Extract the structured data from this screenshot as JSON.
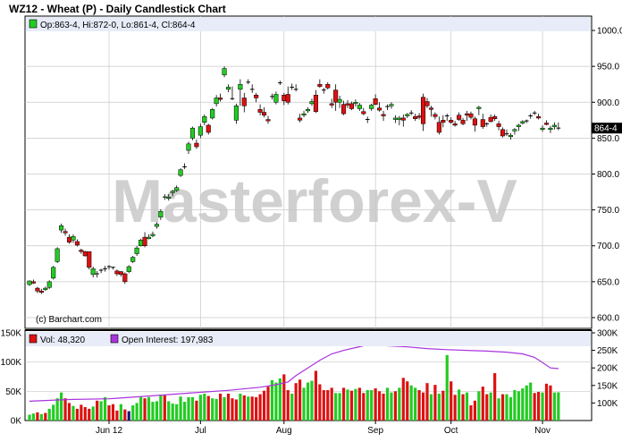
{
  "title": "WZ12 - Wheat (P) - Daily Candlestick Chart",
  "watermark": "Masterforex-V",
  "credit": "(c) Barchart.com",
  "colors": {
    "up": "#22cc22",
    "down": "#dd1111",
    "oi_line": "#aa33dd",
    "vol_neutral": "#1a1a80",
    "grid": "#c8c8c8",
    "legend_bg": "#e8ecf8"
  },
  "chart_data": [
    {
      "type": "candlestick",
      "legend": {
        "open": "Op:863-4",
        "high": "Hi:872-0",
        "low": "Lo:861-4",
        "close": "Cl:864-4"
      },
      "last_price_label": "864-4",
      "ylim": [
        585,
        1020
      ],
      "yticks": [
        600,
        650,
        700,
        750,
        800,
        850,
        900,
        950,
        1000
      ],
      "ytick_labels": [
        "600.0",
        "650.0",
        "700.0",
        "750.0",
        "800.0",
        "850.0",
        "900.0",
        "950.0",
        "1000.0"
      ],
      "x_labels": [
        {
          "index": 20,
          "label": "Jun 12"
        },
        {
          "index": 43,
          "label": "Jul"
        },
        {
          "index": 64,
          "label": "Aug"
        },
        {
          "index": 87,
          "label": "Sep"
        },
        {
          "index": 106,
          "label": "Oct"
        },
        {
          "index": 129,
          "label": "Nov"
        }
      ],
      "candles": [
        [
          646,
          652,
          644,
          651
        ],
        [
          650,
          653,
          647,
          648
        ],
        [
          641,
          643,
          634,
          637
        ],
        [
          637,
          640,
          633,
          635
        ],
        [
          639,
          643,
          637,
          641
        ],
        [
          642,
          652,
          640,
          650
        ],
        [
          655,
          672,
          653,
          670
        ],
        [
          678,
          698,
          676,
          696
        ],
        [
          722,
          731,
          718,
          728
        ],
        [
          720,
          724,
          714,
          718
        ],
        [
          712,
          716,
          703,
          705
        ],
        [
          708,
          716,
          704,
          713
        ],
        [
          706,
          709,
          699,
          701
        ],
        [
          694,
          696,
          689,
          692
        ],
        [
          692,
          693,
          685,
          686
        ],
        [
          692,
          692,
          667,
          670
        ],
        [
          660,
          671,
          656,
          668
        ],
        [
          661,
          665,
          656,
          660
        ],
        [
          665,
          668,
          662,
          666
        ],
        [
          668,
          672,
          664,
          667
        ],
        [
          671,
          673,
          667,
          670
        ],
        [
          670,
          671,
          667,
          669
        ],
        [
          665,
          667,
          658,
          661
        ],
        [
          664,
          665,
          657,
          660
        ],
        [
          661,
          663,
          647,
          650
        ],
        [
          664,
          673,
          662,
          671
        ],
        [
          678,
          686,
          676,
          684
        ],
        [
          689,
          700,
          686,
          697
        ],
        [
          700,
          710,
          699,
          708
        ],
        [
          712,
          719,
          698,
          700
        ],
        [
          710,
          716,
          709,
          712
        ],
        [
          714,
          720,
          712,
          716
        ],
        [
          727,
          733,
          724,
          730
        ],
        [
          740,
          751,
          736,
          748
        ],
        [
          768,
          772,
          764,
          767
        ],
        [
          766,
          772,
          763,
          768
        ],
        [
          774,
          778,
          769,
          776
        ],
        [
          777,
          784,
          775,
          781
        ],
        [
          798,
          808,
          796,
          806
        ],
        [
          810,
          815,
          807,
          810
        ],
        [
          833,
          845,
          828,
          842
        ],
        [
          850,
          866,
          847,
          864
        ],
        [
          843,
          848,
          835,
          838
        ],
        [
          854,
          870,
          850,
          866
        ],
        [
          872,
          883,
          868,
          880
        ],
        [
          868,
          870,
          855,
          858
        ],
        [
          878,
          892,
          876,
          890
        ],
        [
          898,
          910,
          894,
          906
        ],
        [
          906,
          912,
          901,
          904
        ],
        [
          938,
          950,
          935,
          947
        ],
        [
          918,
          925,
          914,
          921
        ],
        [
          905,
          922,
          903,
          905
        ],
        [
          875,
          898,
          870,
          895
        ],
        [
          918,
          932,
          895,
          925
        ],
        [
          906,
          913,
          886,
          895
        ],
        [
          928,
          932,
          925,
          928
        ],
        [
          918,
          925,
          913,
          918
        ],
        [
          910,
          913,
          900,
          906
        ],
        [
          890,
          897,
          882,
          886
        ],
        [
          886,
          893,
          879,
          882
        ],
        [
          876,
          881,
          870,
          874
        ],
        [
          908,
          912,
          904,
          907
        ],
        [
          900,
          915,
          897,
          911
        ],
        [
          927,
          930,
          924,
          927
        ],
        [
          910,
          913,
          896,
          902
        ],
        [
          911,
          922,
          897,
          900
        ],
        [
          921,
          926,
          917,
          920
        ],
        [
          918,
          925,
          915,
          918
        ],
        [
          878,
          884,
          872,
          875
        ],
        [
          882,
          888,
          879,
          884
        ],
        [
          888,
          893,
          885,
          890
        ],
        [
          898,
          905,
          895,
          901
        ],
        [
          910,
          917,
          885,
          887
        ],
        [
          925,
          932,
          920,
          922
        ],
        [
          917,
          920,
          912,
          916
        ],
        [
          925,
          928,
          918,
          920
        ],
        [
          898,
          905,
          892,
          896
        ],
        [
          917,
          925,
          888,
          900
        ],
        [
          900,
          909,
          892,
          904
        ],
        [
          897,
          902,
          882,
          884
        ],
        [
          898,
          903,
          892,
          896
        ],
        [
          898,
          901,
          889,
          891
        ],
        [
          898,
          904,
          894,
          900
        ],
        [
          891,
          899,
          888,
          896
        ],
        [
          887,
          892,
          882,
          884
        ],
        [
          875,
          880,
          871,
          876
        ],
        [
          891,
          898,
          888,
          896
        ],
        [
          905,
          911,
          896,
          897
        ],
        [
          892,
          900,
          887,
          889
        ],
        [
          883,
          888,
          874,
          881
        ],
        [
          893,
          897,
          889,
          894
        ],
        [
          895,
          900,
          891,
          897
        ],
        [
          876,
          882,
          871,
          878
        ],
        [
          876,
          881,
          868,
          878
        ],
        [
          878,
          883,
          866,
          875
        ],
        [
          881,
          885,
          878,
          883
        ],
        [
          885,
          889,
          882,
          885
        ],
        [
          880,
          884,
          874,
          877
        ],
        [
          881,
          885,
          876,
          879
        ],
        [
          907,
          912,
          860,
          870
        ],
        [
          901,
          906,
          892,
          895
        ],
        [
          892,
          895,
          880,
          890
        ],
        [
          883,
          886,
          876,
          880
        ],
        [
          872,
          880,
          855,
          858
        ],
        [
          875,
          882,
          865,
          872
        ],
        [
          880,
          884,
          874,
          881
        ],
        [
          875,
          879,
          870,
          872
        ],
        [
          870,
          874,
          866,
          868
        ],
        [
          882,
          886,
          874,
          876
        ],
        [
          875,
          878,
          868,
          870
        ],
        [
          884,
          888,
          874,
          882
        ],
        [
          884,
          887,
          876,
          879
        ],
        [
          877,
          880,
          859,
          868
        ],
        [
          891,
          895,
          882,
          893
        ],
        [
          876,
          884,
          863,
          866
        ],
        [
          869,
          872,
          866,
          870
        ],
        [
          879,
          883,
          872,
          873
        ],
        [
          880,
          883,
          874,
          877
        ],
        [
          870,
          874,
          861,
          866
        ],
        [
          862,
          865,
          851,
          853
        ],
        [
          856,
          862,
          853,
          855
        ],
        [
          852,
          857,
          848,
          854
        ],
        [
          860,
          864,
          855,
          862
        ],
        [
          866,
          870,
          860,
          868
        ],
        [
          871,
          875,
          869,
          873
        ],
        [
          874,
          876,
          871,
          874
        ],
        [
          880,
          884,
          877,
          881
        ],
        [
          884,
          888,
          882,
          885
        ],
        [
          880,
          884,
          876,
          878
        ],
        [
          862,
          868,
          859,
          864
        ],
        [
          871,
          875,
          868,
          869
        ],
        [
          862,
          867,
          857,
          864
        ],
        [
          866,
          872,
          862,
          868
        ],
        [
          863,
          872,
          861,
          864
        ]
      ]
    },
    {
      "type": "bar+line",
      "legend_vol": "Vol: 48,320",
      "legend_oi": "Open Interest: 197,983",
      "vol_ylim": [
        0,
        150000
      ],
      "vol_yticks": [
        0,
        50000,
        100000,
        150000
      ],
      "vol_ytick_labels": [
        "0K",
        "50K",
        "100K",
        "150K"
      ],
      "oi_ylim": [
        50000,
        300000
      ],
      "oi_yticks": [
        100000,
        150000,
        200000,
        250000,
        300000
      ],
      "oi_ytick_labels": [
        "100K",
        "150K",
        "200K",
        "250K",
        "300K"
      ],
      "volume": [
        10000,
        12000,
        14000,
        11000,
        13000,
        20000,
        27000,
        38000,
        48000,
        38000,
        30000,
        25000,
        20000,
        27000,
        23000,
        20000,
        24000,
        34000,
        33000,
        40000,
        26000,
        28000,
        17000,
        28000,
        19000,
        16000,
        26000,
        30000,
        40000,
        38000,
        40000,
        32000,
        33000,
        44000,
        43000,
        33000,
        29000,
        28000,
        41000,
        32000,
        40000,
        40000,
        34000,
        44000,
        46000,
        42000,
        38000,
        37000,
        46000,
        40000,
        46000,
        38000,
        36000,
        46000,
        43000,
        41000,
        41000,
        40000,
        45000,
        51000,
        58000,
        69000,
        65000,
        72000,
        79000,
        52000,
        46000,
        64000,
        70000,
        56000,
        65000,
        68000,
        85000,
        62000,
        52000,
        52000,
        56000,
        47000,
        47000,
        56000,
        53000,
        51000,
        54000,
        56000,
        47000,
        52000,
        52000,
        55000,
        50000,
        46000,
        56000,
        48000,
        50000,
        56000,
        73000,
        67000,
        60000,
        56000,
        52000,
        48000,
        64000,
        45000,
        61000,
        46000,
        51000,
        112000,
        67000,
        44000,
        53000,
        45000,
        48000,
        26000,
        34000,
        50000,
        58000,
        45000,
        48000,
        81000,
        38000,
        45000,
        45000,
        40000,
        52000,
        50000,
        55000,
        60000,
        65000,
        47000,
        49000,
        48000,
        63000,
        60000,
        48000,
        48320
      ],
      "volume_colors": [
        "g",
        "g",
        "r",
        "g",
        "r",
        "g",
        "g",
        "g",
        "g",
        "r",
        "r",
        "g",
        "r",
        "r",
        "r",
        "r",
        "g",
        "r",
        "g",
        "g",
        "r",
        "r",
        "r",
        "g",
        "r",
        "b",
        "g",
        "g",
        "g",
        "r",
        "g",
        "g",
        "g",
        "g",
        "r",
        "g",
        "g",
        "g",
        "g",
        "g",
        "g",
        "g",
        "r",
        "g",
        "g",
        "r",
        "g",
        "g",
        "r",
        "g",
        "r",
        "r",
        "r",
        "g",
        "r",
        "g",
        "r",
        "r",
        "r",
        "r",
        "r",
        "g",
        "g",
        "g",
        "r",
        "r",
        "g",
        "r",
        "r",
        "g",
        "g",
        "g",
        "r",
        "r",
        "r",
        "r",
        "r",
        "g",
        "g",
        "r",
        "g",
        "r",
        "g",
        "r",
        "r",
        "g",
        "g",
        "r",
        "r",
        "r",
        "g",
        "g",
        "r",
        "g",
        "r",
        "r",
        "g",
        "g",
        "r",
        "r",
        "r",
        "g",
        "r",
        "g",
        "r",
        "g",
        "r",
        "r",
        "g",
        "r",
        "g",
        "r",
        "r",
        "g",
        "r",
        "r",
        "g",
        "r",
        "g",
        "r",
        "g",
        "g",
        "g",
        "g",
        "g",
        "g",
        "g",
        "r",
        "r",
        "g",
        "r",
        "r",
        "g",
        "g"
      ],
      "open_interest": [
        [
          0,
          105000
        ],
        [
          10,
          110000
        ],
        [
          20,
          112000
        ],
        [
          30,
          120000
        ],
        [
          40,
          128000
        ],
        [
          50,
          136000
        ],
        [
          58,
          145000
        ],
        [
          62,
          152000
        ],
        [
          65,
          160000
        ],
        [
          67,
          178000
        ],
        [
          70,
          200000
        ],
        [
          73,
          222000
        ],
        [
          76,
          240000
        ],
        [
          79,
          250000
        ],
        [
          82,
          258000
        ],
        [
          86,
          268000
        ],
        [
          90,
          263000
        ],
        [
          95,
          260000
        ],
        [
          100,
          255000
        ],
        [
          105,
          252000
        ],
        [
          110,
          250000
        ],
        [
          115,
          248000
        ],
        [
          120,
          245000
        ],
        [
          124,
          240000
        ],
        [
          127,
          230000
        ],
        [
          129,
          215000
        ],
        [
          131,
          200000
        ],
        [
          133,
          197983
        ]
      ]
    }
  ]
}
